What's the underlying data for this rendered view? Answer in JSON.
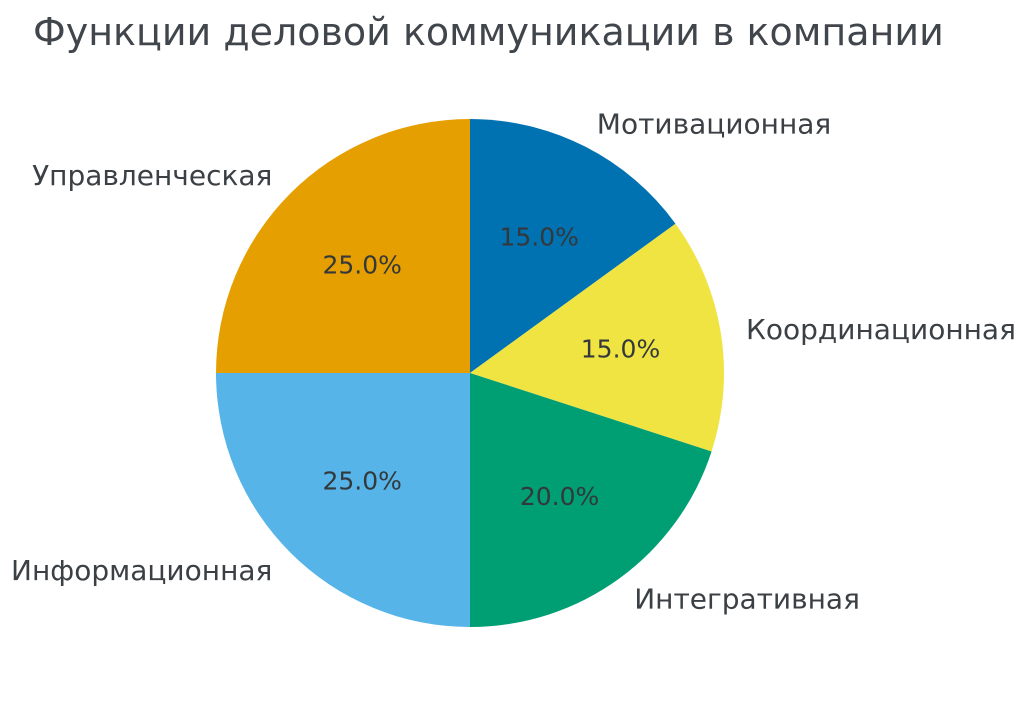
{
  "chart_data": {
    "type": "pie",
    "title": "Функции деловой коммуникации в компании",
    "start_angle_deg": 0,
    "direction": "clockwise-from-top",
    "legend_position": "none",
    "grid": false,
    "slices": [
      {
        "label": "Мотивационная",
        "value": 15.0,
        "pct_label": "15.0%",
        "color": "#0072B2"
      },
      {
        "label": "Координационная",
        "value": 15.0,
        "pct_label": "15.0%",
        "color": "#F0E442"
      },
      {
        "label": "Интегративная",
        "value": 20.0,
        "pct_label": "20.0%",
        "color": "#009E73"
      },
      {
        "label": "Информационная",
        "value": 25.0,
        "pct_label": "25.0%",
        "color": "#56B4E9"
      },
      {
        "label": "Управленческая",
        "value": 25.0,
        "pct_label": "25.0%",
        "color": "#E69F00"
      }
    ],
    "colors": {
      "background": "#ffffff",
      "title_text": "#41464c",
      "label_text": "#3b4045",
      "pct_text": "#33383b"
    }
  }
}
